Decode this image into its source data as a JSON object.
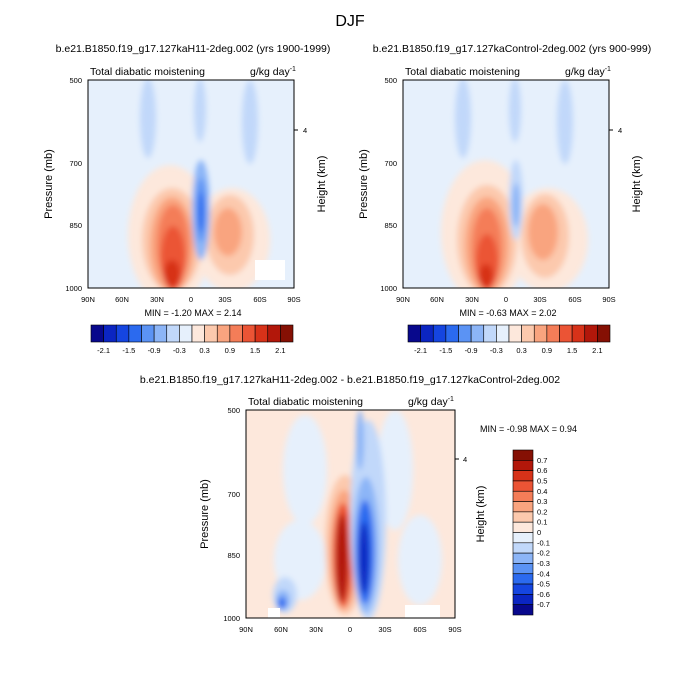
{
  "figure": {
    "title": "DJF"
  },
  "chart_data": [
    {
      "type": "heatmap",
      "title": "b.e21.B1850.f19_g17.127kaH11-2deg.002 (yrs 1900-1999)",
      "left_label": "Total diabatic moistening",
      "right_label": "g/kg day",
      "right_label_sup": "-1",
      "ylabel": "Pressure (mb)",
      "ylabel_right": "Height (km)",
      "x_ticks": [
        "90N",
        "60N",
        "30N",
        "0",
        "30S",
        "60S",
        "90S"
      ],
      "y_ticks": [
        "500",
        "700",
        "850",
        "1000"
      ],
      "y_ticks_right": [
        "4"
      ],
      "stats": "MIN =  -1.20  MAX =  2.14",
      "min": -1.2,
      "max": 2.14,
      "colorbar": {
        "labels": [
          "-2.1",
          "-1.5",
          "-0.9",
          "-0.3",
          "0.3",
          "0.9",
          "1.5",
          "2.1"
        ]
      }
    },
    {
      "type": "heatmap",
      "title": "b.e21.B1850.f19_g17.127kaControl-2deg.002 (yrs 900-999)",
      "left_label": "Total diabatic moistening",
      "right_label": "g/kg day",
      "right_label_sup": "-1",
      "ylabel": "Pressure (mb)",
      "ylabel_right": "Height (km)",
      "x_ticks": [
        "90N",
        "60N",
        "30N",
        "0",
        "30S",
        "60S",
        "90S"
      ],
      "y_ticks": [
        "500",
        "700",
        "850",
        "1000"
      ],
      "y_ticks_right": [
        "4"
      ],
      "stats": "MIN =  -0.63  MAX =  2.02",
      "min": -0.63,
      "max": 2.02,
      "colorbar": {
        "labels": [
          "-2.1",
          "-1.5",
          "-0.9",
          "-0.3",
          "0.3",
          "0.9",
          "1.5",
          "2.1"
        ]
      }
    },
    {
      "type": "heatmap",
      "title": "b.e21.B1850.f19_g17.127kaH11-2deg.002 - b.e21.B1850.f19_g17.127kaControl-2deg.002",
      "left_label": "Total diabatic moistening",
      "right_label": "g/kg day",
      "right_label_sup": "-1",
      "ylabel": "Pressure (mb)",
      "ylabel_right": "Height (km)",
      "x_ticks": [
        "90N",
        "60N",
        "30N",
        "0",
        "30S",
        "60S",
        "90S"
      ],
      "y_ticks": [
        "500",
        "700",
        "850",
        "1000"
      ],
      "y_ticks_right": [
        "4"
      ],
      "stats": "MIN =  -0.98  MAX =   0.94",
      "min": -0.98,
      "max": 0.94,
      "colorbar": {
        "labels": [
          "0.7",
          "0.6",
          "0.5",
          "0.4",
          "0.3",
          "0.2",
          "0.1",
          "0",
          "-0.1",
          "-0.2",
          "-0.3",
          "-0.4",
          "-0.5",
          "-0.6",
          "-0.7"
        ]
      }
    }
  ],
  "colors": {
    "cb16": [
      "#08088c",
      "#0b25c2",
      "#1545e0",
      "#2b6aef",
      "#5b93f4",
      "#8cb5f7",
      "#c1d8fa",
      "#e6f0fc",
      "#fde8dc",
      "#fcc9ad",
      "#f9a47f",
      "#f47d58",
      "#eb5435",
      "#d73219",
      "#b2170a",
      "#851004"
    ]
  }
}
